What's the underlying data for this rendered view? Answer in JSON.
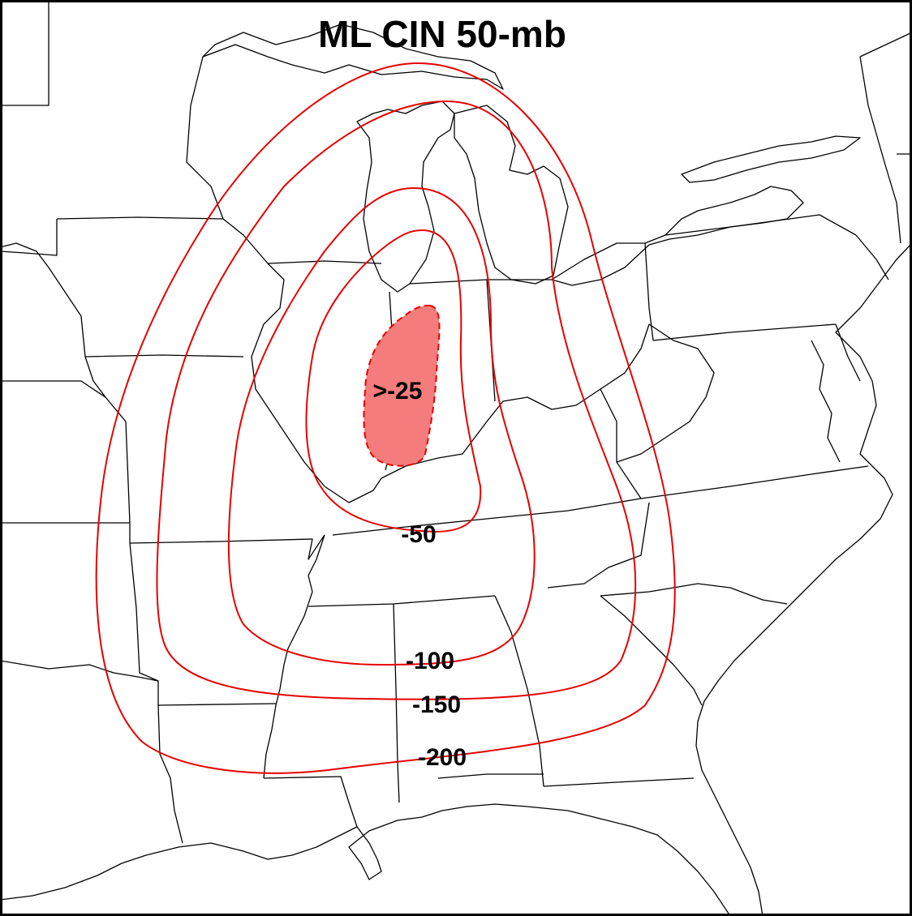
{
  "title": "ML CIN 50-mb",
  "colors": {
    "contour": "#e60000",
    "max_fill": "#f47c7c",
    "boundary": "#000000"
  },
  "contour_labels": {
    "max_area": ">-25",
    "c50": "-50",
    "c100": "-100",
    "c150": "-150",
    "c200": "-200"
  }
}
